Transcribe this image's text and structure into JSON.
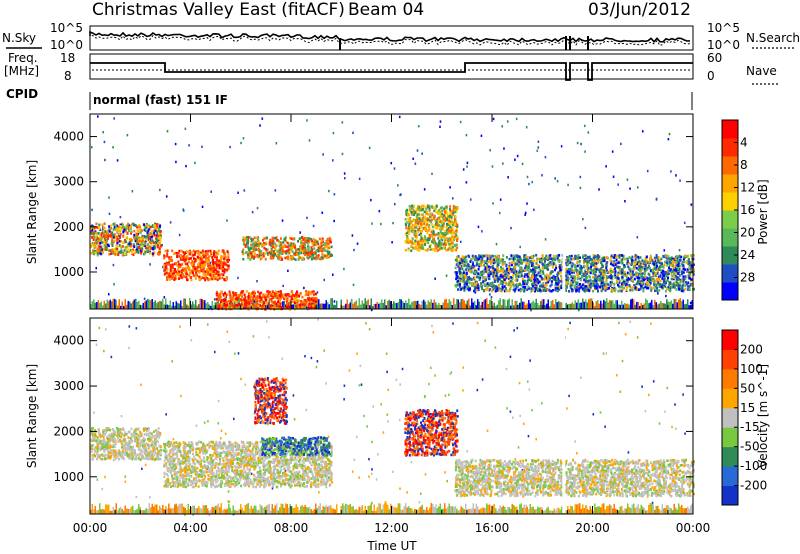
{
  "header": {
    "title": "Christmas Valley East (fitACF)",
    "beam": "Beam 04",
    "date": "03/Jun/2012"
  },
  "top_strip": {
    "nsky_label": "N.Sky",
    "nsky_ticks": [
      "10^5",
      "10^0"
    ],
    "nsearch_label": "N.Search",
    "nsearch_ticks": [
      "10^5",
      "10^0"
    ],
    "freq_label_line1": "Freq.",
    "freq_label_line2": "[MHz]",
    "freq_ticks": [
      "18",
      "8"
    ],
    "nave_label": "Nave",
    "nave_ticks": [
      "60",
      "0"
    ],
    "cpid_label": "CPID",
    "cpid_value": "normal (fast) 151 IF"
  },
  "chart_data": [
    {
      "type": "heatmap",
      "name": "power-panel",
      "xlabel": "",
      "ylabel": "Slant Range [km]",
      "x_ticks": [
        "00:00",
        "04:00",
        "08:00",
        "12:00",
        "16:00",
        "20:00",
        "00:00"
      ],
      "y_ticks": [
        "1000",
        "2000",
        "3000",
        "4000"
      ],
      "xlim_hours": [
        0,
        24
      ],
      "ylim_km": [
        180,
        4500
      ],
      "colorbar": {
        "label": "Power [dB]",
        "ticks": [
          "4",
          "8",
          "12",
          "16",
          "20",
          "24",
          "28"
        ],
        "colors": [
          "#0000ff",
          "#1f4ec4",
          "#2e8b57",
          "#58b85a",
          "#7ccd4a",
          "#ffd000",
          "#ffa500",
          "#ff6a00",
          "#ff2a00",
          "#ff0000"
        ]
      },
      "echo_bands": [
        {
          "t0": 0.0,
          "t1": 2.8,
          "r0": 1400,
          "r1": 2100,
          "level": "green-red"
        },
        {
          "t0": 2.9,
          "t1": 5.5,
          "r0": 850,
          "r1": 1500,
          "level": "red"
        },
        {
          "t0": 6.0,
          "t1": 9.6,
          "r0": 1300,
          "r1": 1800,
          "level": "orange-red"
        },
        {
          "t0": 5.0,
          "t1": 9.0,
          "r0": 200,
          "r1": 600,
          "level": "red"
        },
        {
          "t0": 12.5,
          "t1": 14.6,
          "r0": 1500,
          "r1": 2500,
          "level": "orange"
        },
        {
          "t0": 14.5,
          "t1": 24.0,
          "r0": 600,
          "r1": 1400,
          "level": "blue-green"
        }
      ]
    },
    {
      "type": "heatmap",
      "name": "velocity-panel",
      "xlabel": "Time UT",
      "ylabel": "Slant Range [km]",
      "x_ticks": [
        "00:00",
        "04:00",
        "08:00",
        "12:00",
        "16:00",
        "20:00",
        "00:00"
      ],
      "y_ticks": [
        "1000",
        "2000",
        "3000",
        "4000"
      ],
      "xlim_hours": [
        0,
        24
      ],
      "ylim_km": [
        180,
        4500
      ],
      "colorbar": {
        "label": "Velocity [m s^-1]",
        "ticks": [
          "200",
          "100",
          "50",
          "15",
          "-15",
          "-50",
          "-100",
          "-200"
        ],
        "colors": [
          "#1432c8",
          "#2a6ad6",
          "#2e8b57",
          "#78c840",
          "#c0c0c0",
          "#ffa500",
          "#ff7a00",
          "#ff4000",
          "#ff0000"
        ]
      },
      "echo_bands": [
        {
          "t0": 0.0,
          "t1": 2.8,
          "r0": 1400,
          "r1": 2100,
          "level": "grey"
        },
        {
          "t0": 2.9,
          "t1": 9.6,
          "r0": 800,
          "r1": 1800,
          "level": "grey"
        },
        {
          "t0": 6.8,
          "t1": 9.5,
          "r0": 1500,
          "r1": 1900,
          "level": "blue-green"
        },
        {
          "t0": 6.5,
          "t1": 7.8,
          "r0": 2200,
          "r1": 3200,
          "level": "red"
        },
        {
          "t0": 12.5,
          "t1": 14.6,
          "r0": 1500,
          "r1": 2500,
          "level": "red"
        },
        {
          "t0": 14.5,
          "t1": 24.0,
          "r0": 600,
          "r1": 1400,
          "level": "grey"
        }
      ]
    }
  ]
}
